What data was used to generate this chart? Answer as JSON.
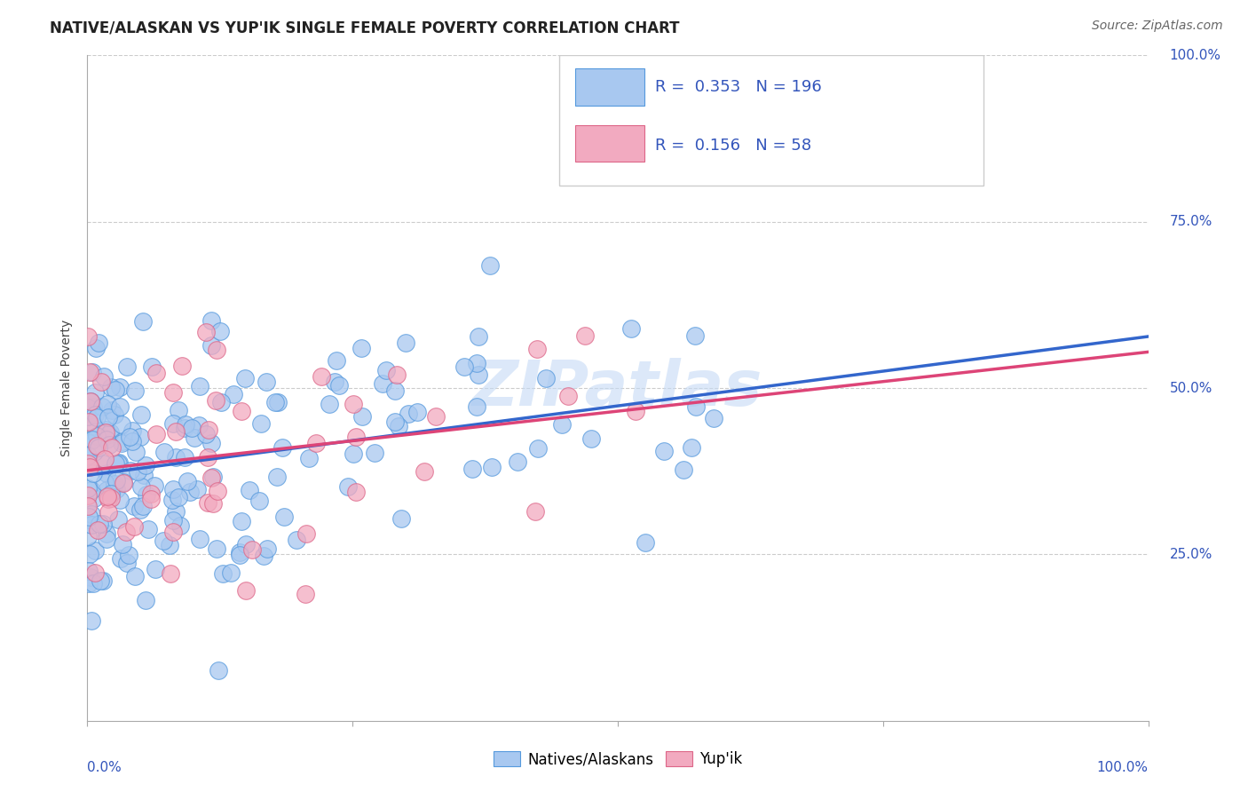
{
  "title": "NATIVE/ALASKAN VS YUP'IK SINGLE FEMALE POVERTY CORRELATION CHART",
  "source": "Source: ZipAtlas.com",
  "ylabel": "Single Female Poverty",
  "legend_label1": "Natives/Alaskans",
  "legend_label2": "Yup'ik",
  "r1": 0.353,
  "n1": 196,
  "r2": 0.156,
  "n2": 58,
  "color_blue": "#a8c8f0",
  "color_pink": "#f2aac0",
  "color_edge_blue": "#5599dd",
  "color_edge_pink": "#dd6688",
  "color_line_blue": "#3366cc",
  "color_line_pink": "#dd4477",
  "color_text_blue": "#3355bb",
  "watermark_color": "#c5daf5",
  "grid_color": "#cccccc",
  "background_color": "#ffffff",
  "title_fontsize": 12,
  "source_fontsize": 10,
  "axis_label_fontsize": 10,
  "legend_fontsize": 13,
  "tick_label_fontsize": 11,
  "xmin": 0.0,
  "xmax": 1.0,
  "ymin": 0.0,
  "ymax": 1.0,
  "y_line_blue_start": 0.375,
  "y_line_blue_end": 0.47,
  "y_line_pink_start": 0.365,
  "y_line_pink_end": 0.445
}
